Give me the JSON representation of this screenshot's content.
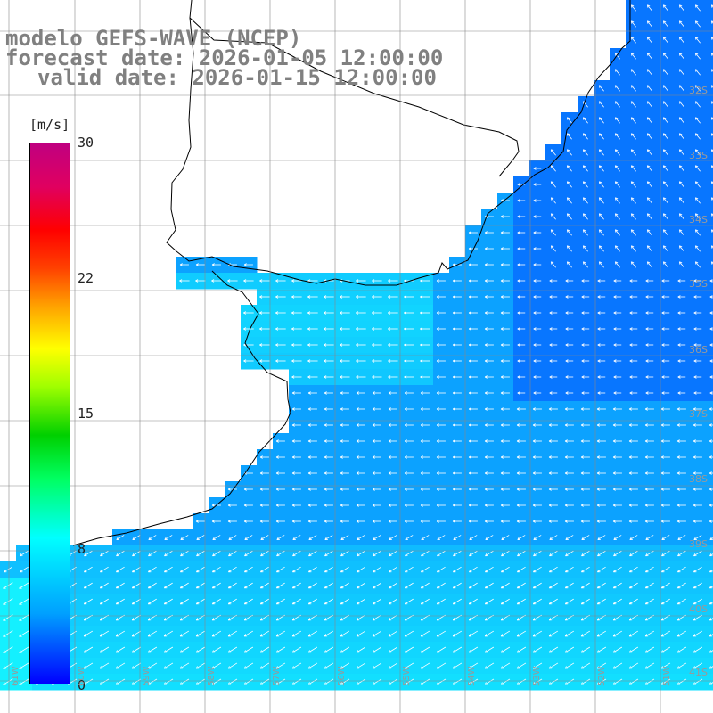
{
  "title": {
    "line1": "modelo GEFS-WAVE (NCEP)",
    "line2": "forecast date: 2026-01-05 12:00:00",
    "line3": "valid date: 2026-01-15 12:00:00"
  },
  "colorbar": {
    "unit": "[m/s]",
    "ticks": [
      "30",
      "22",
      "15",
      "8",
      "0"
    ],
    "tick_values": [
      30,
      22,
      15,
      8,
      0
    ],
    "colors": [
      "#0000ff",
      "#00a0ff",
      "#00ffff",
      "#00ff60",
      "#00d000",
      "#a0ff00",
      "#ffff00",
      "#ffa000",
      "#ff4000",
      "#ff0000",
      "#c00080"
    ]
  },
  "lat_labels": [
    "32S",
    "33S",
    "34S",
    "35S",
    "36S",
    "37S",
    "38S",
    "39S",
    "40S",
    "41S"
  ],
  "lon_labels": [
    "61W",
    "60W",
    "59W",
    "58W",
    "57W",
    "56W",
    "55W",
    "54W",
    "53W",
    "52W",
    "51W"
  ],
  "colors": {
    "land": "#ffffff",
    "coast": "#000000",
    "grid": "#888888",
    "arrow": "#ffffff",
    "title_text": "#808080"
  }
}
